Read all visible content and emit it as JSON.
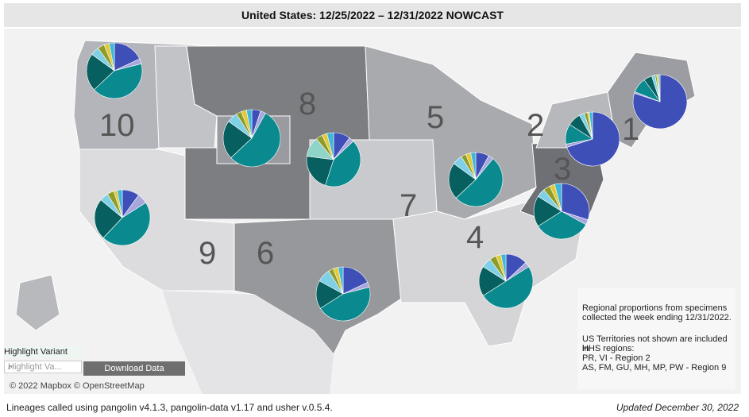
{
  "title": "United States: 12/25/2022 – 12/31/2022 NOWCAST",
  "colors": {
    "dominant_teal": "#0a8a8f",
    "dark_teal": "#07605f",
    "blue": "#3f4fb8",
    "light_blue": "#7fd0e6",
    "lavender": "#a7a7dc",
    "olive": "#8f9c2a",
    "yellow": "#e0c93a",
    "sky": "#40b6d8",
    "light_teal": "#8fd4c9"
  },
  "regions": [
    {
      "id": "1",
      "label": "1"
    },
    {
      "id": "2",
      "label": "2"
    },
    {
      "id": "3",
      "label": "3"
    },
    {
      "id": "4",
      "label": "4"
    },
    {
      "id": "5",
      "label": "5"
    },
    {
      "id": "6",
      "label": "6"
    },
    {
      "id": "7",
      "label": "7"
    },
    {
      "id": "8",
      "label": "8"
    },
    {
      "id": "9",
      "label": "9"
    },
    {
      "id": "10",
      "label": "10"
    }
  ],
  "pies": [
    {
      "region": "1",
      "slices": [
        {
          "c": "blue",
          "v": 80
        },
        {
          "c": "lavender",
          "v": 1
        },
        {
          "c": "dominant_teal",
          "v": 9
        },
        {
          "c": "dark_teal",
          "v": 5
        },
        {
          "c": "light_blue",
          "v": 2
        },
        {
          "c": "olive",
          "v": 1
        },
        {
          "c": "yellow",
          "v": 1
        },
        {
          "c": "sky",
          "v": 1
        }
      ]
    },
    {
      "region": "2",
      "slices": [
        {
          "c": "blue",
          "v": 70
        },
        {
          "c": "lavender",
          "v": 2
        },
        {
          "c": "dominant_teal",
          "v": 12
        },
        {
          "c": "dark_teal",
          "v": 8
        },
        {
          "c": "light_blue",
          "v": 3
        },
        {
          "c": "olive",
          "v": 2
        },
        {
          "c": "yellow",
          "v": 1
        },
        {
          "c": "sky",
          "v": 2
        }
      ]
    },
    {
      "region": "3",
      "slices": [
        {
          "c": "blue",
          "v": 30
        },
        {
          "c": "lavender",
          "v": 3
        },
        {
          "c": "dominant_teal",
          "v": 33
        },
        {
          "c": "dark_teal",
          "v": 18
        },
        {
          "c": "light_blue",
          "v": 5
        },
        {
          "c": "olive",
          "v": 4
        },
        {
          "c": "yellow",
          "v": 3
        },
        {
          "c": "sky",
          "v": 4
        }
      ]
    },
    {
      "region": "4",
      "slices": [
        {
          "c": "blue",
          "v": 13
        },
        {
          "c": "lavender",
          "v": 3
        },
        {
          "c": "dominant_teal",
          "v": 50
        },
        {
          "c": "dark_teal",
          "v": 18
        },
        {
          "c": "light_blue",
          "v": 6
        },
        {
          "c": "olive",
          "v": 4
        },
        {
          "c": "yellow",
          "v": 3
        },
        {
          "c": "sky",
          "v": 3
        }
      ]
    },
    {
      "region": "5",
      "slices": [
        {
          "c": "blue",
          "v": 8
        },
        {
          "c": "lavender",
          "v": 3
        },
        {
          "c": "dominant_teal",
          "v": 52
        },
        {
          "c": "dark_teal",
          "v": 22
        },
        {
          "c": "light_blue",
          "v": 6
        },
        {
          "c": "olive",
          "v": 3
        },
        {
          "c": "yellow",
          "v": 3
        },
        {
          "c": "sky",
          "v": 3
        }
      ]
    },
    {
      "region": "6",
      "slices": [
        {
          "c": "blue",
          "v": 18
        },
        {
          "c": "lavender",
          "v": 3
        },
        {
          "c": "dominant_teal",
          "v": 45
        },
        {
          "c": "dark_teal",
          "v": 17
        },
        {
          "c": "light_blue",
          "v": 8
        },
        {
          "c": "olive",
          "v": 3
        },
        {
          "c": "yellow",
          "v": 3
        },
        {
          "c": "sky",
          "v": 3
        }
      ]
    },
    {
      "region": "7",
      "slices": [
        {
          "c": "blue",
          "v": 10
        },
        {
          "c": "lavender",
          "v": 3
        },
        {
          "c": "dominant_teal",
          "v": 42
        },
        {
          "c": "dark_teal",
          "v": 22
        },
        {
          "c": "light_teal",
          "v": 12
        },
        {
          "c": "olive",
          "v": 4
        },
        {
          "c": "yellow",
          "v": 3
        },
        {
          "c": "sky",
          "v": 4
        }
      ]
    },
    {
      "region": "8",
      "slices": [
        {
          "c": "blue",
          "v": 5
        },
        {
          "c": "lavender",
          "v": 3
        },
        {
          "c": "dominant_teal",
          "v": 55
        },
        {
          "c": "dark_teal",
          "v": 22
        },
        {
          "c": "light_blue",
          "v": 6
        },
        {
          "c": "olive",
          "v": 3
        },
        {
          "c": "yellow",
          "v": 3
        },
        {
          "c": "sky",
          "v": 3
        }
      ]
    },
    {
      "region": "9",
      "slices": [
        {
          "c": "blue",
          "v": 10
        },
        {
          "c": "lavender",
          "v": 6
        },
        {
          "c": "dominant_teal",
          "v": 46
        },
        {
          "c": "dark_teal",
          "v": 24
        },
        {
          "c": "light_blue",
          "v": 5
        },
        {
          "c": "olive",
          "v": 4
        },
        {
          "c": "yellow",
          "v": 2
        },
        {
          "c": "sky",
          "v": 3
        }
      ]
    },
    {
      "region": "10",
      "slices": [
        {
          "c": "blue",
          "v": 18
        },
        {
          "c": "lavender",
          "v": 3
        },
        {
          "c": "dominant_teal",
          "v": 42
        },
        {
          "c": "dark_teal",
          "v": 22
        },
        {
          "c": "light_blue",
          "v": 5
        },
        {
          "c": "olive",
          "v": 4
        },
        {
          "c": "yellow",
          "v": 3
        },
        {
          "c": "sky",
          "v": 3
        }
      ]
    }
  ],
  "info": {
    "line1": "Regional proportions from specimens",
    "line2": "collected the week ending 12/31/2022.",
    "line3": "US Territories not shown are included in",
    "line4": "HHS regions:",
    "line5": "PR, VI - Region 2",
    "line6": "AS, FM, GU, MH, MP, PW - Region 9"
  },
  "controls": {
    "highlight_label": "Highlight Variant",
    "highlight_placeholder": "Highlight Va...",
    "download_label": "Download Data"
  },
  "attribution": "© 2022 Mapbox  © OpenStreetMap",
  "footer": {
    "left": "Lineages called using pangolin v4.1.3, pangolin-data v1.17 and usher v.0.5.4.",
    "right": "Updated December 30, 2022"
  }
}
